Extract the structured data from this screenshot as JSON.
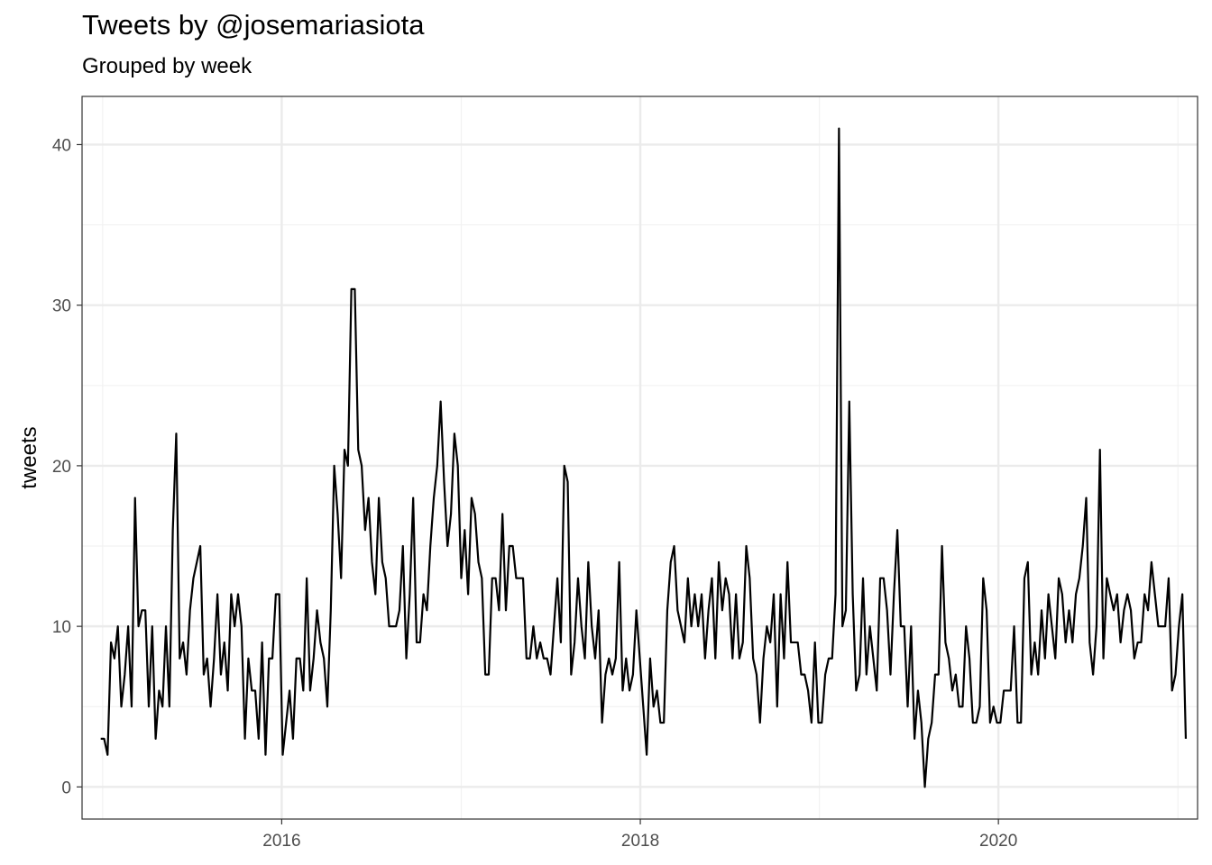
{
  "chart_data": {
    "type": "line",
    "title": "Tweets by @josemariasiota",
    "subtitle": "Grouped by week",
    "xlabel": "",
    "ylabel": "tweets",
    "x_range": [
      "2014-11-20",
      "2021-02-10"
    ],
    "ylim": [
      -2,
      43
    ],
    "y_ticks": [
      0,
      10,
      20,
      30,
      40
    ],
    "y_minor_ticks": [
      5,
      15,
      25,
      35
    ],
    "x_ticks": [
      {
        "label": "2016",
        "date": "2016-01-01"
      },
      {
        "label": "2018",
        "date": "2018-01-01"
      },
      {
        "label": "2020",
        "date": "2020-01-01"
      }
    ],
    "x_minor_ticks": [
      "2015-01-01",
      "2017-01-01",
      "2019-01-01",
      "2021-01-01"
    ],
    "grid": true,
    "line_color": "#000000",
    "start_date": "2014-12-28",
    "week_days": 7,
    "series": [
      {
        "values": [
          3,
          3,
          2,
          9,
          8,
          10,
          5,
          7,
          10,
          5,
          18,
          10,
          11,
          11,
          5,
          10,
          3,
          6,
          5,
          10,
          5,
          16,
          22,
          8,
          9,
          7,
          11,
          13,
          14,
          15,
          7,
          8,
          5,
          8,
          12,
          7,
          9,
          6,
          12,
          10,
          12,
          10,
          3,
          8,
          6,
          6,
          3,
          9,
          2,
          8,
          8,
          12,
          12,
          2,
          4,
          6,
          3,
          8,
          8,
          6,
          13,
          6,
          8,
          11,
          9,
          8,
          5,
          11,
          20,
          17,
          13,
          21,
          20,
          31,
          31,
          21,
          20,
          16,
          18,
          14,
          12,
          18,
          14,
          13,
          10,
          10,
          10,
          11,
          15,
          8,
          12,
          18,
          9,
          9,
          12,
          11,
          15,
          18,
          20,
          24,
          19,
          15,
          17,
          22,
          20,
          13,
          16,
          12,
          18,
          17,
          14,
          13,
          7,
          7,
          13,
          13,
          11,
          17,
          11,
          15,
          15,
          13,
          13,
          13,
          8,
          8,
          10,
          8,
          9,
          8,
          8,
          7,
          10,
          13,
          9,
          20,
          19,
          7,
          9,
          13,
          10,
          8,
          14,
          10,
          8,
          11,
          4,
          7,
          8,
          7,
          8,
          14,
          6,
          8,
          6,
          7,
          11,
          8,
          5,
          2,
          8,
          5,
          6,
          4,
          4,
          11,
          14,
          15,
          11,
          10,
          9,
          13,
          10,
          12,
          10,
          12,
          8,
          11,
          13,
          8,
          14,
          11,
          13,
          12,
          8,
          12,
          8,
          9,
          15,
          13,
          8,
          7,
          4,
          8,
          10,
          9,
          12,
          5,
          12,
          8,
          14,
          9,
          9,
          9,
          7,
          7,
          6,
          4,
          9,
          4,
          4,
          7,
          8,
          8,
          12,
          41,
          10,
          11,
          24,
          12,
          6,
          7,
          13,
          7,
          10,
          8,
          6,
          13,
          13,
          11,
          7,
          12,
          16,
          10,
          10,
          5,
          10,
          3,
          6,
          4,
          0,
          3,
          4,
          7,
          7,
          15,
          9,
          8,
          6,
          7,
          5,
          5,
          10,
          8,
          4,
          4,
          5,
          13,
          11,
          4,
          5,
          4,
          4,
          6,
          6,
          6,
          10,
          4,
          4,
          13,
          14,
          7,
          9,
          7,
          11,
          8,
          12,
          10,
          8,
          13,
          12,
          9,
          11,
          9,
          12,
          13,
          15,
          18,
          9,
          7,
          10,
          21,
          8,
          13,
          12,
          11,
          12,
          9,
          11,
          12,
          11,
          8,
          9,
          9,
          12,
          11,
          14,
          12,
          10,
          10,
          10,
          13,
          6,
          7,
          10,
          12,
          3
        ]
      }
    ]
  }
}
